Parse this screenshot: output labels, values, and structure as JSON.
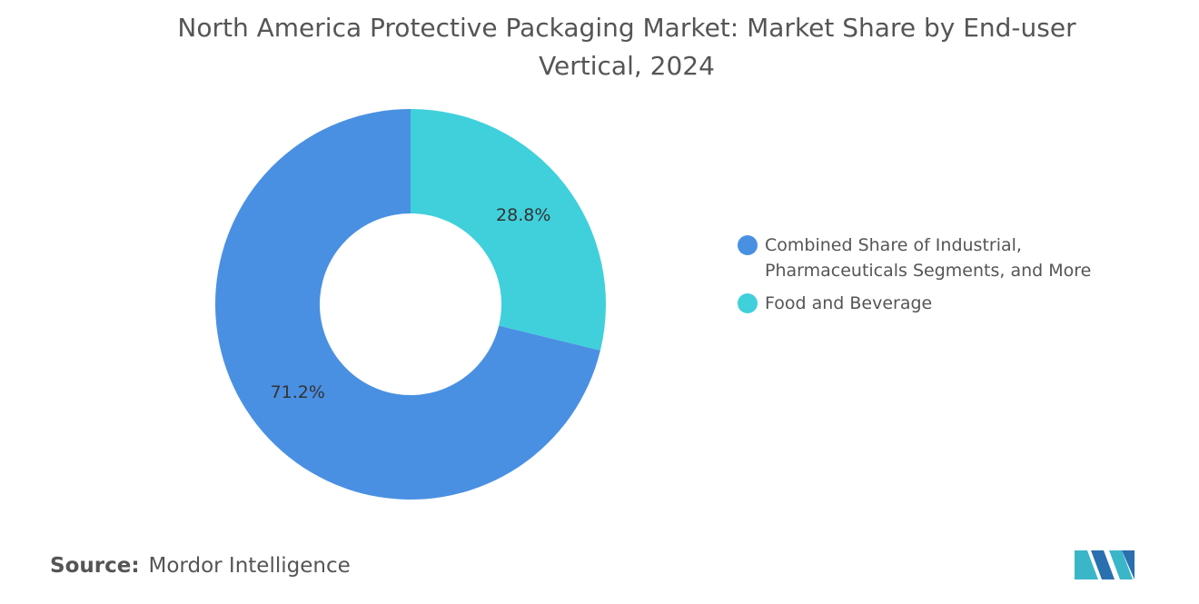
{
  "chart_data": {
    "type": "pie",
    "title": "North America Protective Packaging Market: Market Share by End-user Vertical, 2024",
    "categories": [
      "Combined Share of Industrial, Pharmaceuticals Segments, and More",
      "Food and Beverage"
    ],
    "values": [
      71.2,
      28.8
    ],
    "value_labels": [
      "71.2%",
      "28.8%"
    ],
    "colors": [
      "#4a90e2",
      "#40d0db"
    ],
    "donut": true,
    "legend": "right",
    "source_label": "Source:",
    "source": "Mordor Intelligence"
  }
}
